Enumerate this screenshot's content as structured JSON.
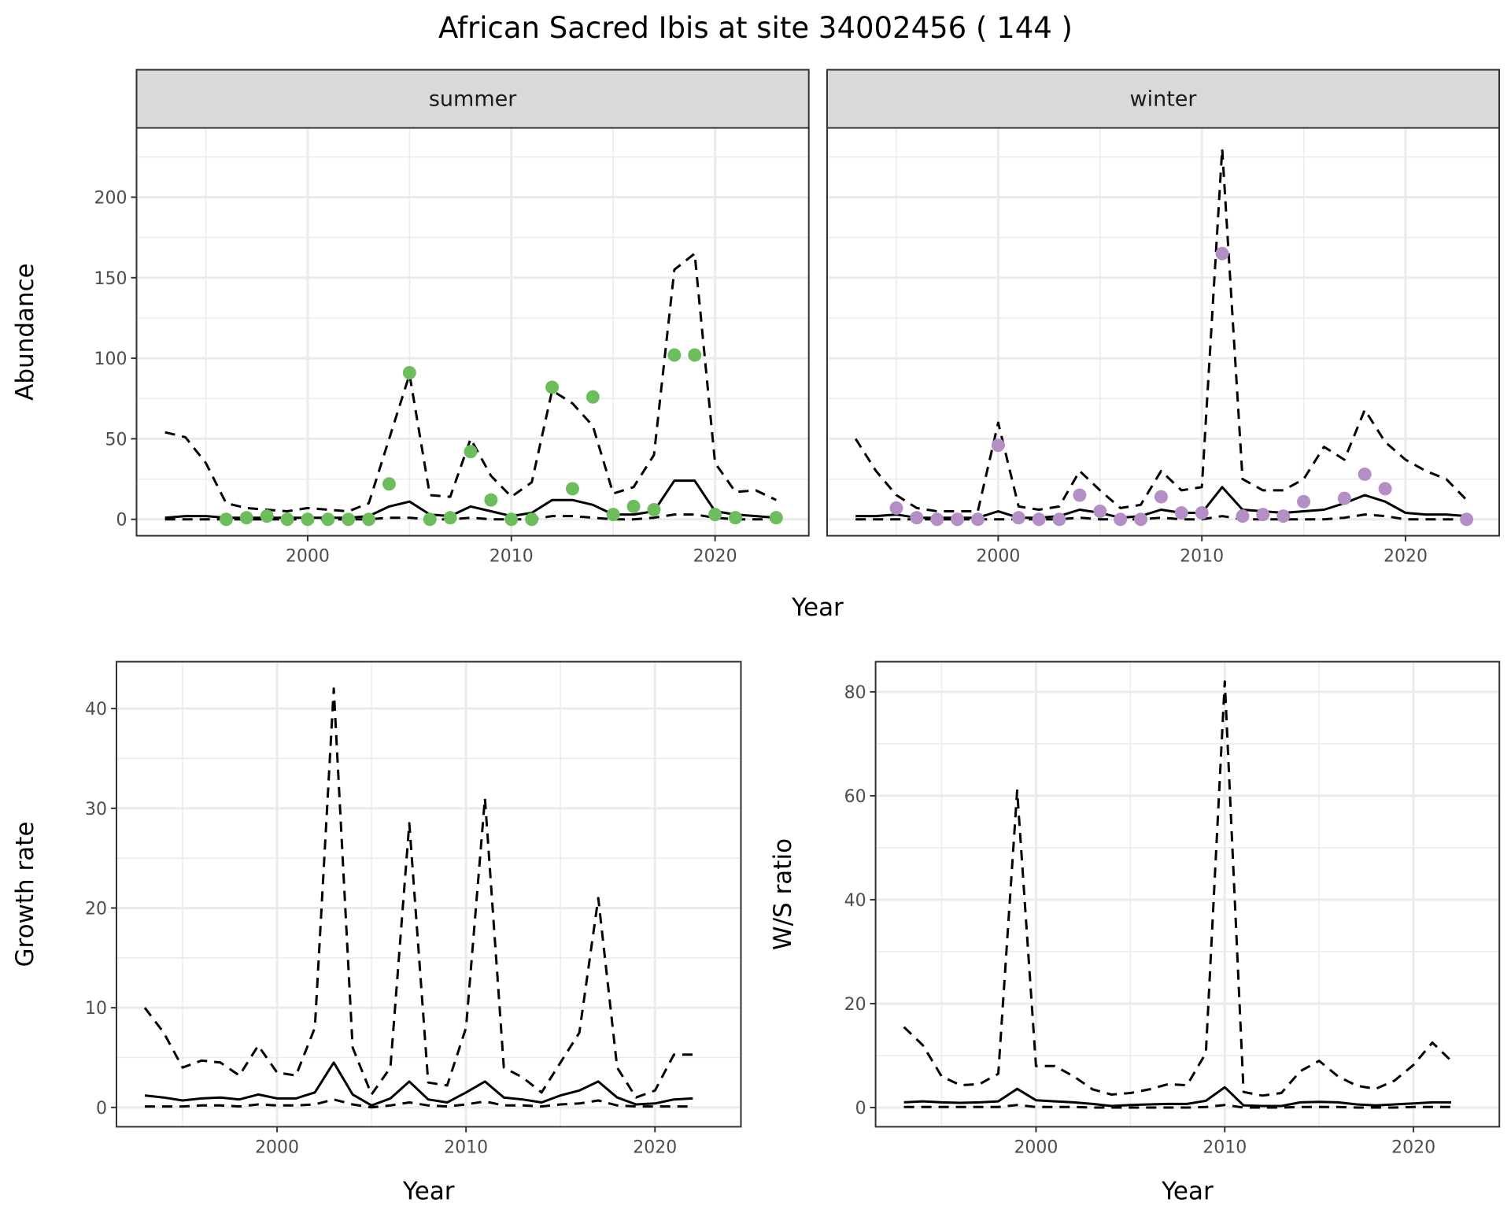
{
  "title": "African Sacred Ibis at site 34002456 ( 144 )",
  "colors": {
    "summer": "#6dbd5c",
    "winter": "#b48fc6",
    "line": "#000000",
    "grid": "#ebebeb",
    "strip": "#d9d9d9"
  },
  "chart_data": [
    {
      "type": "line",
      "facet": "summer",
      "xlabel": "Year",
      "ylabel": "Abundance",
      "xlim": [
        1991.6,
        2024.6
      ],
      "ylim": [
        -10.2,
        243
      ],
      "xticks": [
        2000,
        2010,
        2020
      ],
      "yticks": [
        0,
        50,
        100,
        150,
        200
      ],
      "x": [
        1993,
        1994,
        1995,
        1996,
        1997,
        1998,
        1999,
        2000,
        2001,
        2002,
        2003,
        2004,
        2005,
        2006,
        2007,
        2008,
        2009,
        2010,
        2011,
        2012,
        2013,
        2014,
        2015,
        2016,
        2017,
        2018,
        2019,
        2020,
        2021,
        2022,
        2023
      ],
      "series": [
        {
          "name": "mean",
          "style": "solid",
          "values": [
            1,
            2,
            2,
            1,
            1,
            1,
            1,
            1,
            1,
            1,
            2,
            8,
            11,
            3,
            2,
            8,
            5,
            2,
            4,
            12,
            12,
            9,
            3,
            3,
            5,
            24,
            24,
            5,
            3,
            2,
            1
          ]
        },
        {
          "name": "upper",
          "style": "dashed",
          "values": [
            54,
            51,
            35,
            10,
            7,
            6,
            5,
            7,
            6,
            5,
            10,
            50,
            90,
            15,
            14,
            50,
            27,
            14,
            23,
            80,
            72,
            58,
            16,
            20,
            40,
            155,
            165,
            35,
            17,
            18,
            12
          ]
        },
        {
          "name": "lower",
          "style": "dashed",
          "values": [
            0,
            0,
            0,
            0,
            0,
            0,
            0,
            0,
            0,
            0,
            0,
            1,
            1,
            0,
            0,
            1,
            0,
            0,
            0,
            2,
            2,
            1,
            0,
            0,
            1,
            3,
            3,
            1,
            0,
            0,
            0
          ]
        }
      ],
      "points": {
        "x": [
          1996,
          1997,
          1998,
          1999,
          2000,
          2001,
          2002,
          2003,
          2004,
          2005,
          2006,
          2007,
          2008,
          2009,
          2010,
          2011,
          2012,
          2013,
          2014,
          2015,
          2016,
          2017,
          2018,
          2019,
          2020,
          2021,
          2023
        ],
        "y": [
          0,
          1,
          2,
          0,
          0,
          0,
          0,
          0,
          22,
          91,
          0,
          1,
          42,
          12,
          0,
          0,
          82,
          19,
          76,
          3,
          8,
          6,
          102,
          102,
          3,
          1,
          1
        ]
      }
    },
    {
      "type": "line",
      "facet": "winter",
      "xlabel": "Year",
      "ylabel": "Abundance",
      "xlim": [
        1991.6,
        2024.6
      ],
      "ylim": [
        -10.2,
        243
      ],
      "xticks": [
        2000,
        2010,
        2020
      ],
      "yticks": [
        0,
        50,
        100,
        150,
        200
      ],
      "x": [
        1993,
        1994,
        1995,
        1996,
        1997,
        1998,
        1999,
        2000,
        2001,
        2002,
        2003,
        2004,
        2005,
        2006,
        2007,
        2008,
        2009,
        2010,
        2011,
        2012,
        2013,
        2014,
        2015,
        2016,
        2017,
        2018,
        2019,
        2020,
        2021,
        2022,
        2023
      ],
      "series": [
        {
          "name": "mean",
          "style": "solid",
          "values": [
            2,
            2,
            3,
            1,
            1,
            1,
            1,
            5,
            1,
            1,
            2,
            6,
            4,
            1,
            2,
            6,
            4,
            4,
            20,
            6,
            5,
            4,
            5,
            6,
            10,
            15,
            11,
            4,
            3,
            3,
            2
          ]
        },
        {
          "name": "upper",
          "style": "dashed",
          "values": [
            50,
            30,
            15,
            7,
            5,
            5,
            5,
            60,
            8,
            6,
            8,
            30,
            18,
            7,
            9,
            30,
            18,
            20,
            230,
            25,
            18,
            18,
            25,
            45,
            37,
            68,
            48,
            37,
            30,
            25,
            12
          ]
        },
        {
          "name": "lower",
          "style": "dashed",
          "values": [
            0,
            0,
            0,
            0,
            0,
            0,
            0,
            0,
            0,
            0,
            0,
            1,
            0,
            0,
            0,
            1,
            0,
            0,
            2,
            0,
            0,
            0,
            0,
            0,
            1,
            3,
            2,
            0,
            0,
            0,
            0
          ]
        }
      ],
      "points": {
        "x": [
          1995,
          1996,
          1997,
          1998,
          1999,
          2000,
          2001,
          2002,
          2003,
          2004,
          2005,
          2006,
          2007,
          2008,
          2009,
          2010,
          2011,
          2012,
          2013,
          2014,
          2015,
          2017,
          2018,
          2019,
          2023
        ],
        "y": [
          7,
          1,
          0,
          0,
          0,
          46,
          1,
          0,
          0,
          15,
          5,
          0,
          0,
          14,
          4,
          4,
          165,
          2,
          3,
          2,
          11,
          13,
          28,
          19,
          0
        ]
      }
    },
    {
      "type": "line",
      "xlabel": "Year",
      "ylabel": "Growth rate",
      "xlim": [
        1991.5,
        2024.55
      ],
      "ylim": [
        -1.94,
        44.7
      ],
      "xticks": [
        2000,
        2010,
        2020
      ],
      "yticks": [
        0,
        10,
        20,
        30,
        40
      ],
      "x": [
        1993,
        1994,
        1995,
        1996,
        1997,
        1998,
        1999,
        2000,
        2001,
        2002,
        2003,
        2004,
        2005,
        2006,
        2007,
        2008,
        2009,
        2010,
        2011,
        2012,
        2013,
        2014,
        2015,
        2016,
        2017,
        2018,
        2019,
        2020,
        2021,
        2022
      ],
      "series": [
        {
          "name": "mean",
          "style": "solid",
          "values": [
            1.2,
            1.0,
            0.7,
            0.9,
            1.0,
            0.8,
            1.3,
            0.9,
            0.9,
            1.5,
            4.5,
            1.3,
            0.2,
            0.9,
            2.6,
            0.8,
            0.5,
            1.5,
            2.6,
            1.0,
            0.8,
            0.5,
            1.2,
            1.7,
            2.6,
            1.0,
            0.3,
            0.4,
            0.8,
            0.9
          ]
        },
        {
          "name": "upper",
          "style": "dashed",
          "values": [
            10,
            7.5,
            4,
            4.7,
            4.5,
            3.2,
            6.2,
            3.5,
            3.2,
            8,
            42,
            6,
            1.3,
            4,
            28.5,
            2.5,
            2.2,
            8,
            31,
            4,
            3,
            1.5,
            4.5,
            7.5,
            21,
            4,
            1,
            1.7,
            5.3,
            5.3
          ]
        },
        {
          "name": "lower",
          "style": "dashed",
          "values": [
            0.1,
            0.1,
            0.1,
            0.2,
            0.2,
            0.1,
            0.3,
            0.2,
            0.2,
            0.3,
            0.8,
            0.3,
            0,
            0.2,
            0.5,
            0.2,
            0.1,
            0.3,
            0.6,
            0.2,
            0.2,
            0.1,
            0.3,
            0.4,
            0.7,
            0.2,
            0.1,
            0.1,
            0.1,
            0.1
          ]
        }
      ]
    },
    {
      "type": "line",
      "xlabel": "Year",
      "ylabel": "W/S ratio",
      "xlim": [
        1991.5,
        2024.55
      ],
      "ylim": [
        -3.7,
        85.8
      ],
      "xticks": [
        2000,
        2010,
        2020
      ],
      "yticks": [
        0,
        20,
        40,
        60,
        80
      ],
      "x": [
        1993,
        1994,
        1995,
        1996,
        1997,
        1998,
        1999,
        2000,
        2001,
        2002,
        2003,
        2004,
        2005,
        2006,
        2007,
        2008,
        2009,
        2010,
        2011,
        2012,
        2013,
        2014,
        2015,
        2016,
        2017,
        2018,
        2019,
        2020,
        2021,
        2022
      ],
      "series": [
        {
          "name": "mean",
          "style": "solid",
          "values": [
            1,
            1.2,
            1,
            0.9,
            1,
            1.2,
            3.6,
            1.4,
            1.2,
            1,
            0.7,
            0.3,
            0.5,
            0.6,
            0.7,
            0.7,
            1.3,
            3.9,
            0.4,
            0.3,
            0.3,
            1,
            1.1,
            1,
            0.6,
            0.4,
            0.6,
            0.8,
            1,
            1
          ]
        },
        {
          "name": "upper",
          "style": "dashed",
          "values": [
            15.5,
            12,
            6,
            4.3,
            4.5,
            6.5,
            61,
            8,
            8,
            6,
            3.5,
            2.5,
            2.8,
            3.5,
            4.5,
            4.3,
            10.5,
            82,
            3,
            2.3,
            2.8,
            7,
            9,
            6,
            4.2,
            3.6,
            5.2,
            8.2,
            12.5,
            9
          ]
        },
        {
          "name": "lower",
          "style": "dashed",
          "values": [
            0.1,
            0.1,
            0.1,
            0.1,
            0.1,
            0.1,
            0.5,
            0.1,
            0.1,
            0.1,
            0,
            0,
            0,
            0,
            0,
            0,
            0.1,
            0.5,
            0,
            0,
            0,
            0.1,
            0.1,
            0.1,
            0,
            0,
            0,
            0.1,
            0.1,
            0.1
          ]
        }
      ]
    }
  ]
}
